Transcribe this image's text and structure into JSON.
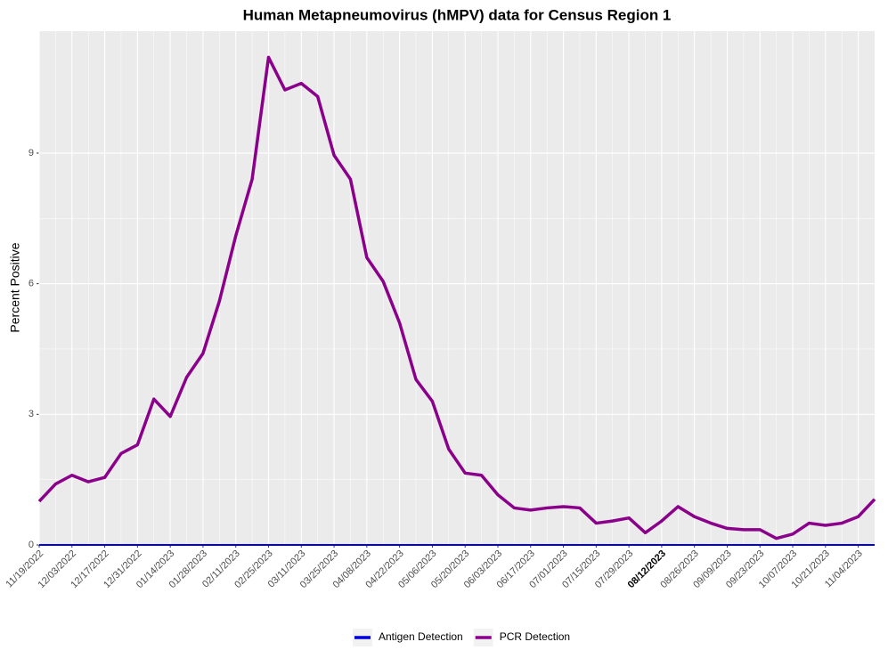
{
  "chart_data": {
    "type": "line",
    "title": "Human Metapneumovirus (hMPV) data for Census Region 1",
    "y_label": "Percent Positive",
    "x": [
      "11/19/2022",
      "11/26/2022",
      "12/03/2022",
      "12/10/2022",
      "12/17/2022",
      "12/24/2022",
      "12/31/2022",
      "01/07/2023",
      "01/14/2023",
      "01/21/2023",
      "01/28/2023",
      "02/04/2023",
      "02/11/2023",
      "02/18/2023",
      "02/25/2023",
      "03/04/2023",
      "03/11/2023",
      "03/18/2023",
      "03/25/2023",
      "04/01/2023",
      "04/08/2023",
      "04/15/2023",
      "04/22/2023",
      "04/29/2023",
      "05/06/2023",
      "05/13/2023",
      "05/20/2023",
      "05/27/2023",
      "06/03/2023",
      "06/10/2023",
      "06/17/2023",
      "06/24/2023",
      "07/01/2023",
      "07/08/2023",
      "07/15/2023",
      "07/22/2023",
      "07/29/2023",
      "08/05/2023",
      "08/12/2023",
      "08/19/2023",
      "08/26/2023",
      "09/02/2023",
      "09/09/2023",
      "09/16/2023",
      "09/23/2023",
      "09/30/2023",
      "10/07/2023",
      "10/14/2023",
      "10/21/2023",
      "10/28/2023",
      "11/04/2023",
      "11/11/2023"
    ],
    "series": [
      {
        "name": "Antigen Detection",
        "color": "#0000dd",
        "values": [
          0,
          0,
          0,
          0,
          0,
          0,
          0,
          0,
          0,
          0,
          0,
          0,
          0,
          0,
          0,
          0,
          0,
          0,
          0,
          0,
          0,
          0,
          0,
          0,
          0,
          0,
          0,
          0,
          0,
          0,
          0,
          0,
          0,
          0,
          0,
          0,
          0,
          0,
          0,
          0,
          0,
          0,
          0,
          0,
          0,
          0,
          0,
          0,
          0,
          0,
          0,
          0
        ]
      },
      {
        "name": "PCR Detection",
        "color": "#8b008b",
        "values": [
          1.0,
          1.4,
          1.6,
          1.45,
          1.55,
          2.1,
          2.3,
          3.35,
          2.95,
          3.85,
          4.4,
          5.6,
          7.1,
          8.4,
          11.2,
          10.45,
          10.6,
          10.3,
          8.95,
          8.4,
          6.6,
          6.05,
          5.1,
          3.8,
          3.3,
          2.2,
          1.65,
          1.6,
          1.15,
          0.85,
          0.8,
          0.85,
          0.88,
          0.85,
          0.5,
          0.55,
          0.62,
          0.28,
          0.55,
          0.88,
          0.65,
          0.5,
          0.38,
          0.35,
          0.35,
          0.15,
          0.25,
          0.5,
          0.45,
          0.5,
          0.65,
          1.05
        ]
      }
    ],
    "xlim": [
      "11/19/2022",
      "11/11/2023"
    ],
    "xticks": [
      "11/19/2022",
      "12/03/2022",
      "12/17/2022",
      "12/31/2022",
      "01/14/2023",
      "01/28/2023",
      "02/11/2023",
      "02/25/2023",
      "03/11/2023",
      "03/25/2023",
      "04/08/2023",
      "04/22/2023",
      "05/06/2023",
      "05/20/2023",
      "06/03/2023",
      "06/17/2023",
      "07/01/2023",
      "07/15/2023",
      "07/29/2023",
      "08/12/2023",
      "08/26/2023",
      "09/09/2023",
      "09/23/2023",
      "10/07/2023",
      "10/21/2023",
      "11/04/2023"
    ],
    "highlight_xtick": 19,
    "ylim": [
      0,
      11.8
    ],
    "yticks": [
      0,
      3,
      6,
      9
    ],
    "grid": true,
    "legend_position": "bottom"
  }
}
